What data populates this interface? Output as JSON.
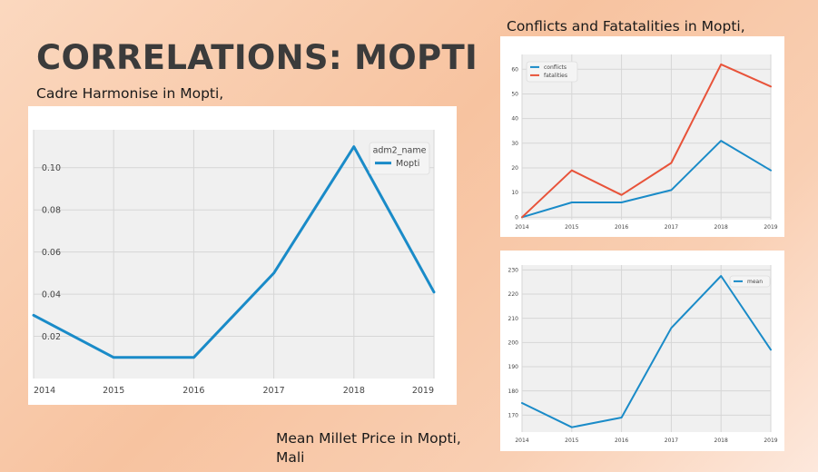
{
  "slide": {
    "title": "CORRELATIONS: MOPTI",
    "caption_cadre": "Cadre Harmonise in Mopti,",
    "caption_conflicts": "Conflicts and Fatatalities in Mopti,",
    "caption_millet_line1": "Mean Millet Price in Mopti,",
    "caption_millet_line2": "Mali"
  },
  "colors": {
    "blue": "#1a8bc8",
    "red": "#e8533a",
    "plot_bg": "#f0f0f0",
    "grid": "#d6d6d6"
  },
  "chart_data": [
    {
      "id": "cadre",
      "type": "line",
      "x": [
        2014,
        2015,
        2016,
        2017,
        2018,
        2019
      ],
      "series": [
        {
          "name": "Mopti",
          "values": [
            0.03,
            0.01,
            0.01,
            0.05,
            0.11,
            0.041
          ],
          "color": "#1a8bc8"
        }
      ],
      "legend_title": "adm2_name",
      "legend_position": "top-right",
      "xlim": [
        2014,
        2019
      ],
      "ylim": [
        0.0,
        0.118
      ],
      "yticks": [
        0.02,
        0.04,
        0.06,
        0.08,
        0.1
      ],
      "ytick_labels": [
        "0.02",
        "0.04",
        "0.06",
        "0.08",
        "0.10"
      ],
      "xticks": [
        2014,
        2015,
        2016,
        2017,
        2018,
        2019
      ],
      "grid": true
    },
    {
      "id": "conflicts",
      "type": "line",
      "x": [
        2014,
        2015,
        2016,
        2017,
        2018,
        2019
      ],
      "series": [
        {
          "name": "conflicts",
          "values": [
            0,
            6,
            6,
            11,
            31,
            19
          ],
          "color": "#1a8bc8"
        },
        {
          "name": "fatalities",
          "values": [
            0,
            19,
            9,
            22,
            62,
            53
          ],
          "color": "#e8533a"
        }
      ],
      "legend_position": "top-left",
      "xlim": [
        2014,
        2019
      ],
      "ylim": [
        -1,
        66
      ],
      "yticks": [
        0,
        10,
        20,
        30,
        40,
        50,
        60
      ],
      "ytick_labels": [
        "0",
        "10",
        "20",
        "30",
        "40",
        "50",
        "60"
      ],
      "xticks": [
        2014,
        2015,
        2016,
        2017,
        2018,
        2019
      ],
      "grid": true
    },
    {
      "id": "millet",
      "type": "line",
      "x": [
        2014,
        2015,
        2016,
        2017,
        2018,
        2019
      ],
      "series": [
        {
          "name": "mean",
          "values": [
            175,
            165,
            169,
            206,
            227.5,
            197
          ],
          "color": "#1a8bc8"
        }
      ],
      "legend_position": "top-right",
      "xlim": [
        2014,
        2019
      ],
      "ylim": [
        163,
        232
      ],
      "yticks": [
        170,
        180,
        190,
        200,
        210,
        220,
        230
      ],
      "ytick_labels": [
        "170",
        "180",
        "190",
        "200",
        "210",
        "220",
        "230"
      ],
      "xticks": [
        2014,
        2015,
        2016,
        2017,
        2018,
        2019
      ],
      "grid": true
    }
  ]
}
